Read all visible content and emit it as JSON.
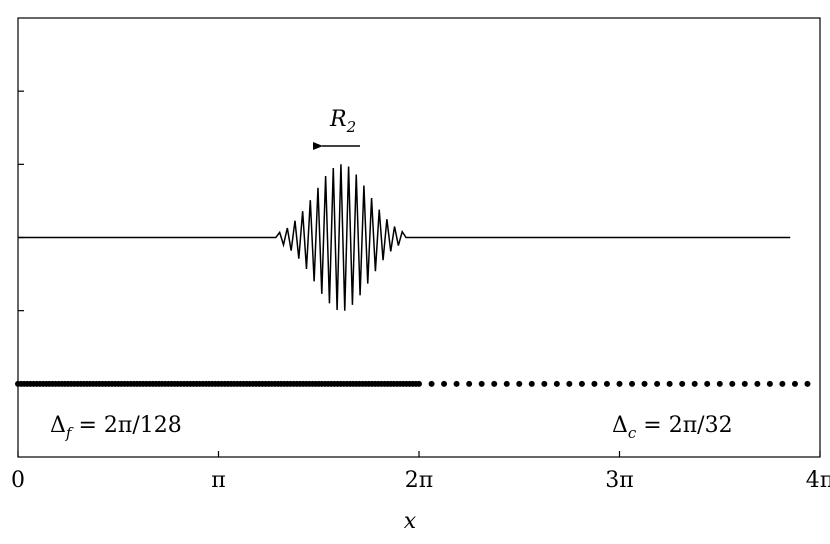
{
  "chart_data": {
    "type": "line",
    "xlabel": "x",
    "xlim": [
      0,
      12.56637
    ],
    "ylim": [
      -3,
      3
    ],
    "xticks": [
      0,
      {
        "value": 3.14159,
        "label": "π"
      },
      {
        "value": 6.28319,
        "label": "2π"
      },
      {
        "value": 9.42478,
        "label": "3π"
      },
      {
        "value": 12.56637,
        "label": "4π"
      }
    ],
    "yticks": [
      -2,
      -1,
      0,
      1,
      2
    ],
    "series": [
      {
        "type": "line",
        "color": "#000000",
        "x": [
          0,
          4.04,
          4.1,
          4.16,
          4.22,
          4.28,
          4.34,
          4.4,
          4.46,
          4.52,
          4.58,
          4.64,
          4.7,
          4.76,
          4.82,
          4.88,
          4.94,
          5.0,
          5.06,
          5.12,
          5.18,
          5.24,
          5.3,
          5.36,
          5.42,
          5.48,
          5.54,
          5.6,
          5.66,
          5.72,
          5.78,
          5.84,
          5.9,
          5.96,
          6.02,
          6.08,
          12.1
        ],
        "values": [
          0,
          0,
          0.07,
          -0.1,
          0.13,
          -0.18,
          0.23,
          -0.29,
          0.36,
          -0.43,
          0.51,
          -0.6,
          0.68,
          -0.77,
          0.84,
          -0.9,
          0.95,
          -0.99,
          1.0,
          -1.0,
          0.97,
          -0.92,
          0.86,
          -0.79,
          0.71,
          -0.63,
          0.54,
          -0.46,
          0.38,
          -0.31,
          0.25,
          -0.19,
          0.15,
          -0.11,
          0.08,
          0,
          0
        ]
      },
      {
        "type": "scatter",
        "color": "#000000",
        "y": -2,
        "x": [
          0,
          0.049,
          0.098,
          0.147,
          0.196,
          0.245,
          0.295,
          0.344,
          0.393,
          0.442,
          0.491,
          0.54,
          0.589,
          0.638,
          0.687,
          0.736,
          0.785,
          0.834,
          0.884,
          0.933,
          0.982,
          1.031,
          1.08,
          1.129,
          1.178,
          1.227,
          1.276,
          1.325,
          1.374,
          1.424,
          1.473,
          1.522,
          1.571,
          1.62,
          1.669,
          1.718,
          1.767,
          1.816,
          1.865,
          1.914,
          1.963,
          2.013,
          2.062,
          2.111,
          2.16,
          2.209,
          2.258,
          2.307,
          2.356,
          2.405,
          2.454,
          2.503,
          2.553,
          2.602,
          2.651,
          2.7,
          2.749,
          2.798,
          2.847,
          2.896,
          2.945,
          2.994,
          3.043,
          3.093,
          3.142,
          3.191,
          3.24,
          3.289,
          3.338,
          3.387,
          3.436,
          3.485,
          3.534,
          3.583,
          3.632,
          3.682,
          3.731,
          3.78,
          3.829,
          3.878,
          3.927,
          3.976,
          4.025,
          4.074,
          4.123,
          4.172,
          4.222,
          4.271,
          4.32,
          4.369,
          4.418,
          4.467,
          4.516,
          4.565,
          4.614,
          4.663,
          4.712,
          4.761,
          4.811,
          4.86,
          4.909,
          4.958,
          5.007,
          5.056,
          5.105,
          5.154,
          5.203,
          5.252,
          5.301,
          5.351,
          5.4,
          5.449,
          5.498,
          5.547,
          5.596,
          5.645,
          5.694,
          5.743,
          5.792,
          5.841,
          5.89,
          5.94,
          5.989,
          6.038,
          6.087,
          6.136,
          6.185,
          6.234,
          6.283
        ]
      },
      {
        "type": "scatter",
        "color": "#000000",
        "y": -2,
        "x": [
          6.48,
          6.676,
          6.872,
          7.069,
          7.265,
          7.462,
          7.658,
          7.854,
          8.05,
          8.247,
          8.443,
          8.639,
          8.836,
          9.032,
          9.228,
          9.425,
          9.621,
          9.817,
          10.014,
          10.21,
          10.407,
          10.603,
          10.799,
          10.996,
          11.192,
          11.388,
          11.585,
          11.781,
          11.977,
          12.174,
          12.37
        ]
      }
    ],
    "annotations": [
      {
        "text": "R",
        "sub": "2"
      },
      {
        "text": "Δ",
        "sub": "f",
        "rest": " = 2π/128"
      },
      {
        "text": "Δ",
        "sub": "c",
        "rest": " = 2π/32"
      }
    ]
  }
}
